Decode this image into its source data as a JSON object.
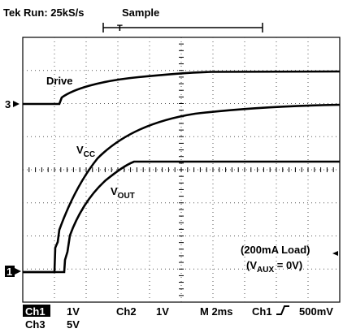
{
  "header": {
    "status": "Tek Run: 25kS/s",
    "mode": "Sample",
    "trigger_marker": "T"
  },
  "channel_markers": {
    "ch3": "3",
    "ch1": "1"
  },
  "traces": {
    "drive": {
      "label": "Drive"
    },
    "vcc": {
      "label": "V",
      "subscript": "CC"
    },
    "vout": {
      "label": "V",
      "subscript": "OUT"
    }
  },
  "annotation": {
    "line1": "(200mA Load)",
    "line2_prefix": "(V",
    "line2_subscript": "AUX",
    "line2_suffix": " = 0V)"
  },
  "footer": {
    "ch1": "Ch1",
    "ch1_scale": "1V",
    "ch2": "Ch2",
    "ch2_scale": "1V",
    "timebase": "M 2ms",
    "trigger_source": "Ch1",
    "trigger_level": "500mV",
    "ch3": "Ch3",
    "ch3_scale": "5V"
  }
}
